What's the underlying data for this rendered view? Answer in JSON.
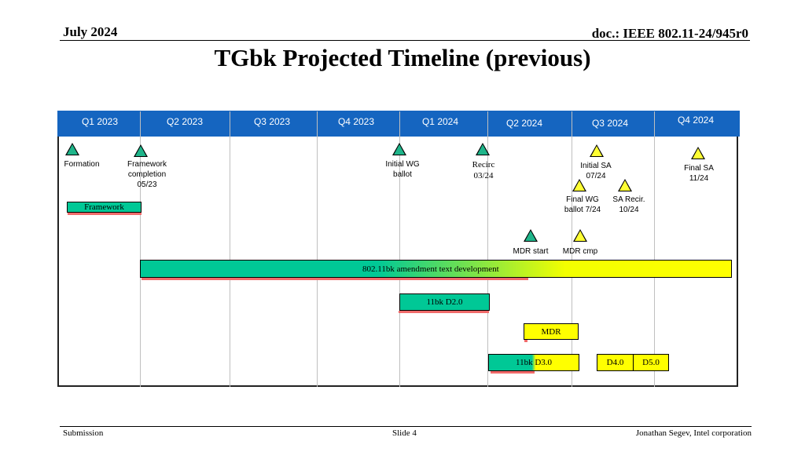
{
  "header": {
    "date": "July 2024",
    "doc": "doc.: IEEE 802.11-24/945r0"
  },
  "title": "TGbk Projected Timeline (previous)",
  "quarters": [
    "Q1 2023",
    "Q2 2023",
    "Q3 2023",
    "Q4 2023",
    "Q1 2024",
    "Q2 2024",
    "Q3 2024",
    "Q4 2024"
  ],
  "milestones": {
    "formation": {
      "label": "Formation",
      "color": "green"
    },
    "framework_completion": {
      "label_1": "Framework",
      "label_2": "completion",
      "label_3": "05/23",
      "color": "green"
    },
    "initial_wg_ballot": {
      "label_1": "Initial WG",
      "label_2": "ballot",
      "color": "green"
    },
    "recirc": {
      "label_1": "Recirc",
      "label_2": "03/24",
      "color": "green"
    },
    "initial_sa": {
      "label_1": "Initial SA",
      "label_2": "07/24",
      "color": "yellow"
    },
    "final_sa": {
      "label_1": "Final SA",
      "label_2": "11/24",
      "color": "yellow"
    },
    "final_wg_ballot": {
      "label_1": "Final WG",
      "label_2": "ballot 7/24",
      "color": "yellow"
    },
    "sa_recir": {
      "label_1": "SA Recir.",
      "label_2": "10/24",
      "color": "yellow"
    },
    "mdr_start": {
      "label": "MDR start",
      "color": "green"
    },
    "mdr_cmp": {
      "label": "MDR cmp",
      "color": "yellow"
    }
  },
  "bars": {
    "framework": "Framework",
    "amendment": "802.11bk amendment text development",
    "d2": "11bk D2.0",
    "mdr": "MDR",
    "d3": "11bk D3.0",
    "d4": "D4.0",
    "d5": "D5.0"
  },
  "colors": {
    "header_bar": "#1565c0",
    "green": "#00c896",
    "yellow": "#ffff00",
    "shadow": "#f06b6b"
  },
  "footer": {
    "left": "Submission",
    "center": "Slide 4",
    "right": "Jonathan Segev, Intel corporation"
  }
}
